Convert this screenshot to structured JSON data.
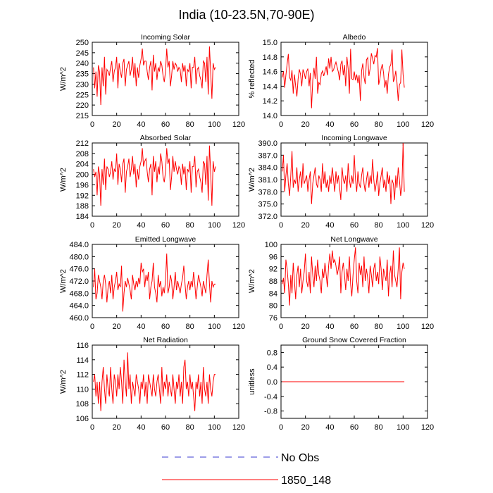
{
  "figure": {
    "title": "India (10-23.5N,70-90E)",
    "colors": {
      "series": "#ff0000",
      "obs": "#3b3bd0",
      "axis": "#000000"
    }
  },
  "legend": {
    "entries": [
      {
        "label": "No Obs",
        "style": "dashed",
        "color": "#3b3bd0"
      },
      {
        "label": "1850_148",
        "style": "solid",
        "color": "#ff0000"
      }
    ]
  },
  "chart_data": [
    {
      "type": "line",
      "title": "Incoming Solar",
      "ylabel": "W/m^2",
      "xlim": [
        0,
        120
      ],
      "xticks": [
        0,
        20,
        40,
        60,
        80,
        100,
        120
      ],
      "ylim": [
        215,
        250
      ],
      "yticks": [
        215,
        220,
        225,
        230,
        235,
        240,
        245,
        250
      ],
      "ytick_decimals": 0,
      "series": [
        {
          "name": "1850_148",
          "x_start": 1,
          "x_step": 1,
          "values": [
            238,
            228,
            236,
            224,
            239,
            236,
            220,
            238,
            229,
            243,
            225,
            237,
            236,
            234,
            238,
            241,
            231,
            236,
            238,
            243,
            228,
            240,
            236,
            233,
            240,
            242,
            229,
            237,
            239,
            241,
            234,
            237,
            243,
            233,
            240,
            229,
            238,
            233,
            239,
            242,
            247,
            239,
            241,
            241,
            236,
            232,
            238,
            241,
            227,
            244,
            236,
            240,
            232,
            238,
            236,
            241,
            239,
            234,
            231,
            236,
            247,
            238,
            241,
            229,
            234,
            241,
            237,
            240,
            239,
            236,
            238,
            237,
            231,
            240,
            236,
            239,
            229,
            237,
            236,
            240,
            228,
            238,
            238,
            243,
            230,
            237,
            238,
            234,
            232,
            228,
            241,
            240,
            231,
            243,
            225,
            248,
            236,
            223,
            240,
            237,
            238
          ]
        }
      ]
    },
    {
      "type": "line",
      "title": "Albedo",
      "ylabel": "% reflected",
      "xlim": [
        0,
        120
      ],
      "xticks": [
        0,
        20,
        40,
        60,
        80,
        100,
        120
      ],
      "ylim": [
        14.0,
        15.0
      ],
      "yticks": [
        14.0,
        14.2,
        14.4,
        14.6,
        14.8,
        15.0
      ],
      "ytick_decimals": 1,
      "series": [
        {
          "name": "1850_148",
          "x_start": 1,
          "x_step": 1,
          "values": [
            14.52,
            14.6,
            14.38,
            14.55,
            14.7,
            14.84,
            14.52,
            14.48,
            14.62,
            14.3,
            14.56,
            14.4,
            14.26,
            14.5,
            14.63,
            14.56,
            14.4,
            14.63,
            14.58,
            14.5,
            14.6,
            14.64,
            14.4,
            14.58,
            14.1,
            14.48,
            14.65,
            14.5,
            14.8,
            14.3,
            14.45,
            14.42,
            14.57,
            14.61,
            14.54,
            14.6,
            14.67,
            14.55,
            14.78,
            14.64,
            14.8,
            14.6,
            14.62,
            14.68,
            14.73,
            14.66,
            14.59,
            14.48,
            14.7,
            14.75,
            14.55,
            14.69,
            14.4,
            14.8,
            14.64,
            14.3,
            14.91,
            14.5,
            14.49,
            14.6,
            14.48,
            14.56,
            14.44,
            14.55,
            14.2,
            14.61,
            14.71,
            14.52,
            14.43,
            14.76,
            14.79,
            14.54,
            14.64,
            14.85,
            14.78,
            14.7,
            14.82,
            14.8,
            14.92,
            14.42,
            14.5,
            14.64,
            14.7,
            14.58,
            14.38,
            14.48,
            14.3,
            14.56,
            14.66,
            14.7,
            14.9,
            14.46,
            14.5,
            14.61,
            14.45,
            14.2,
            14.42,
            14.45,
            14.9,
            14.56,
            14.38
          ]
        }
      ]
    },
    {
      "type": "line",
      "title": "Absorbed Solar",
      "ylabel": "W/m^2",
      "xlim": [
        0,
        120
      ],
      "xticks": [
        0,
        20,
        40,
        60,
        80,
        100,
        120
      ],
      "ylim": [
        184,
        212
      ],
      "yticks": [
        184,
        188,
        192,
        196,
        200,
        204,
        208,
        212
      ],
      "ytick_decimals": 0,
      "series": [
        {
          "name": "1850_148",
          "x_start": 1,
          "x_step": 1,
          "values": [
            202,
            199,
            201,
            192,
            203,
            200,
            188,
            202,
            196,
            206,
            194,
            203,
            202,
            199,
            201,
            205,
            198,
            202,
            201,
            208,
            196,
            204,
            202,
            197,
            204,
            206,
            193,
            201,
            203,
            206,
            199,
            202,
            207,
            200,
            204,
            195,
            202,
            198,
            203,
            205,
            210,
            203,
            205,
            206,
            201,
            197,
            202,
            204,
            192,
            207,
            201,
            205,
            197,
            203,
            200,
            208,
            205,
            199,
            197,
            201,
            210,
            204,
            206,
            194,
            199,
            207,
            201,
            205,
            202,
            200,
            203,
            202,
            196,
            204,
            200,
            203,
            194,
            202,
            201,
            205,
            193,
            203,
            203,
            207,
            195,
            201,
            202,
            199,
            197,
            193,
            205,
            204,
            196,
            207,
            190,
            211,
            201,
            188,
            205,
            201,
            203
          ]
        }
      ]
    },
    {
      "type": "line",
      "title": "Incoming Longwave",
      "ylabel": "W/m^2",
      "xlim": [
        0,
        120
      ],
      "xticks": [
        0,
        20,
        40,
        60,
        80,
        100,
        120
      ],
      "ylim": [
        372.0,
        390.0
      ],
      "yticks": [
        372.0,
        375.0,
        378.0,
        381.0,
        384.0,
        387.0,
        390.0
      ],
      "ytick_decimals": 1,
      "series": [
        {
          "name": "1850_148",
          "x_start": 1,
          "x_step": 1,
          "values": [
            383,
            387,
            378,
            382,
            385,
            380,
            377,
            382,
            388,
            379,
            381,
            380,
            384,
            378,
            381,
            383,
            379,
            385,
            380,
            381,
            382,
            378,
            381,
            383,
            375,
            380,
            382,
            384,
            380,
            379,
            382,
            381,
            378,
            385,
            380,
            383,
            379,
            381,
            378,
            382,
            380,
            384,
            381,
            378,
            383,
            380,
            382,
            379,
            376,
            384,
            381,
            380,
            382,
            378,
            385,
            381,
            379,
            382,
            380,
            387,
            381,
            378,
            383,
            380,
            379,
            382,
            384,
            380,
            378,
            381,
            383,
            379,
            382,
            380,
            386,
            381,
            378,
            380,
            383,
            377,
            380,
            382,
            384,
            379,
            381,
            378,
            383,
            380,
            382,
            375,
            381,
            380,
            376,
            382,
            379,
            384,
            381,
            377,
            379,
            390,
            378
          ]
        }
      ]
    },
    {
      "type": "line",
      "title": "Emitted Longwave",
      "ylabel": "W/m^2",
      "xlim": [
        0,
        120
      ],
      "xticks": [
        0,
        20,
        40,
        60,
        80,
        100,
        120
      ],
      "ylim": [
        460.0,
        484.0
      ],
      "yticks": [
        460.0,
        464.0,
        468.0,
        472.0,
        476.0,
        480.0,
        484.0
      ],
      "ytick_decimals": 1,
      "series": [
        {
          "name": "1850_148",
          "x_start": 1,
          "x_step": 1,
          "values": [
            470,
            476,
            466,
            468,
            474,
            472,
            470,
            466,
            472,
            474,
            471,
            465,
            470,
            472,
            468,
            474,
            466,
            470,
            472,
            475,
            469,
            471,
            470,
            477,
            462,
            468,
            472,
            470,
            473,
            471,
            469,
            466,
            474,
            471,
            469,
            472,
            470,
            473,
            471,
            478,
            475,
            476,
            470,
            474,
            472,
            475,
            466,
            470,
            472,
            478,
            470,
            468,
            465,
            474,
            470,
            472,
            467,
            470,
            468,
            472,
            481,
            468,
            470,
            474,
            472,
            466,
            470,
            475,
            469,
            472,
            470,
            468,
            471,
            473,
            477,
            471,
            466,
            470,
            472,
            469,
            472,
            470,
            475,
            471,
            466,
            470,
            474,
            472,
            470,
            467,
            472,
            470,
            468,
            474,
            479,
            471,
            465,
            472,
            470,
            471,
            471
          ]
        }
      ]
    },
    {
      "type": "line",
      "title": "Net Longwave",
      "ylabel": "W/m^2",
      "xlim": [
        0,
        120
      ],
      "xticks": [
        0,
        20,
        40,
        60,
        80,
        100,
        120
      ],
      "ylim": [
        76,
        100
      ],
      "yticks": [
        76,
        80,
        84,
        88,
        92,
        96,
        100
      ],
      "ytick_decimals": 0,
      "series": [
        {
          "name": "1850_148",
          "x_start": 1,
          "x_step": 1,
          "values": [
            87,
            89,
            84,
            95,
            92,
            87,
            80,
            90,
            84,
            94,
            88,
            82,
            90,
            93,
            86,
            92,
            84,
            88,
            91,
            97,
            88,
            86,
            91,
            84,
            96,
            90,
            86,
            93,
            88,
            95,
            90,
            88,
            84,
            92,
            89,
            94,
            90,
            86,
            93,
            97,
            92,
            98,
            94,
            95,
            93,
            90,
            92,
            96,
            84,
            91,
            94,
            90,
            85,
            92,
            88,
            96,
            87,
            83,
            90,
            95,
            99,
            88,
            84,
            94,
            90,
            93,
            86,
            96,
            88,
            92,
            89,
            84,
            93,
            90,
            86,
            92,
            94,
            88,
            91,
            87,
            96,
            92,
            85,
            92,
            90,
            88,
            95,
            83,
            90,
            93,
            86,
            98,
            90,
            88,
            86,
            92,
            99,
            82,
            91,
            94,
            92
          ]
        }
      ]
    },
    {
      "type": "line",
      "title": "Net Radiation",
      "ylabel": "W/m^2",
      "xlim": [
        0,
        120
      ],
      "xticks": [
        0,
        20,
        40,
        60,
        80,
        100,
        120
      ],
      "ylim": [
        106,
        116
      ],
      "yticks": [
        106,
        108,
        110,
        112,
        114,
        116
      ],
      "ytick_decimals": 0,
      "series": [
        {
          "name": "1850_148",
          "x_start": 1,
          "x_step": 1,
          "values": [
            111,
            112,
            109,
            111,
            108,
            111,
            107,
            111,
            113,
            110,
            108,
            112,
            110,
            109,
            113,
            110,
            108,
            112,
            111,
            109,
            112,
            110,
            113,
            111,
            108,
            114,
            111,
            109,
            115,
            110,
            112,
            108,
            111,
            110,
            109,
            112,
            111,
            110,
            108,
            111,
            110,
            112,
            109,
            111,
            108,
            112,
            111,
            110,
            109,
            112,
            110,
            109,
            111,
            112,
            110,
            108,
            113,
            109,
            111,
            110,
            112,
            109,
            111,
            110,
            109,
            112,
            110,
            108,
            111,
            110,
            112,
            109,
            111,
            108,
            113,
            114,
            110,
            111,
            109,
            112,
            110,
            111,
            109,
            107,
            111,
            110,
            112,
            109,
            111,
            108,
            113,
            110,
            109,
            111,
            108,
            112,
            110,
            109,
            111,
            112,
            112
          ]
        }
      ]
    },
    {
      "type": "line",
      "title": "Ground Snow Covered Fraction",
      "ylabel": "unitless",
      "xlim": [
        0,
        120
      ],
      "xticks": [
        0,
        20,
        40,
        60,
        80,
        100,
        120
      ],
      "ylim": [
        -1.0,
        1.0
      ],
      "yticks": [
        -0.8,
        -0.4,
        0.0,
        0.4,
        0.8
      ],
      "ytick_decimals": 1,
      "series": [
        {
          "name": "1850_148",
          "x_start": 1,
          "x_step": 100,
          "values": [
            0.0,
            0.0
          ]
        }
      ]
    }
  ]
}
